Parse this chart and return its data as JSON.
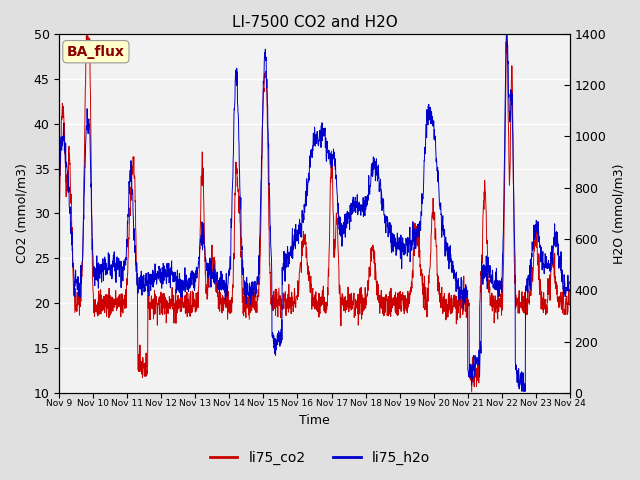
{
  "title": "LI-7500 CO2 and H2O",
  "xlabel": "Time",
  "ylabel_left": "CO2 (mmol/m3)",
  "ylabel_right": "H2O (mmol/m3)",
  "legend_label1": "li75_co2",
  "legend_label2": "li75_h2o",
  "annotation_text": "BA_flux",
  "annotation_color": "#8B0000",
  "annotation_bg": "#FFFFCC",
  "co2_color": "#CC0000",
  "h2o_color": "#0000CC",
  "ylim_left": [
    10,
    50
  ],
  "ylim_right": [
    0,
    1400
  ],
  "bg_color": "#E0E0E0",
  "plot_bg": "#F2F2F2",
  "xtick_labels": [
    "Nov 9",
    "Nov 10",
    "Nov 11",
    "Nov 12",
    "Nov 13",
    "Nov 14",
    "Nov 15",
    "Nov 16",
    "Nov 17",
    "Nov 18",
    "Nov 19",
    "Nov 20",
    "Nov 21",
    "Nov 22",
    "Nov 23",
    "Nov 24"
  ],
  "n_points": 2000,
  "seed": 7
}
